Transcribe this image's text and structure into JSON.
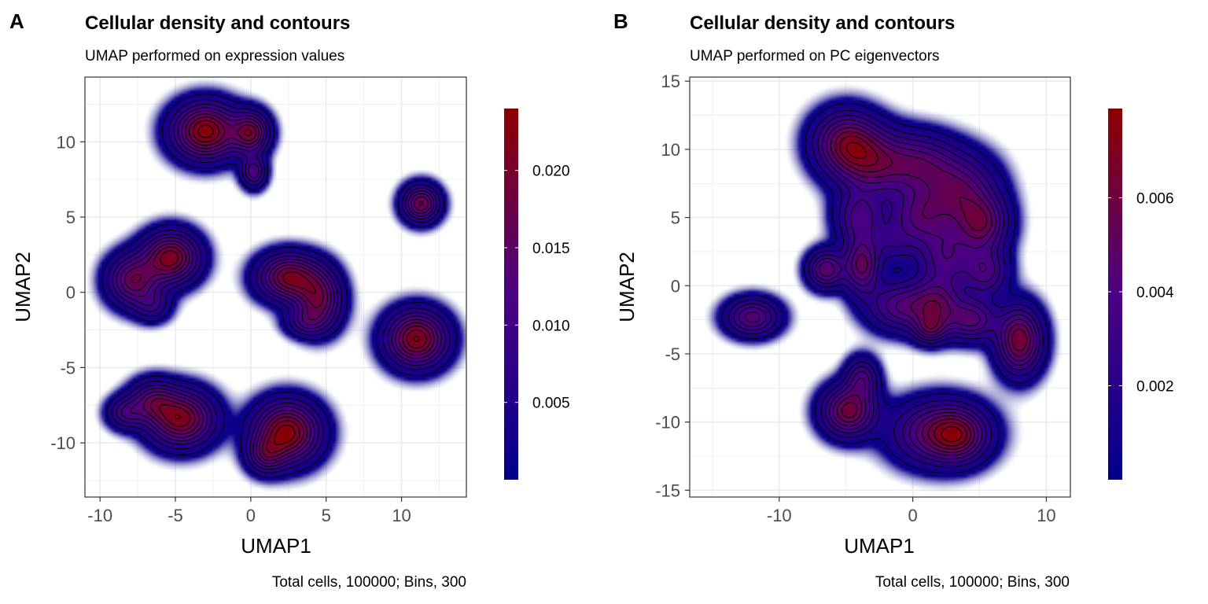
{
  "colors": {
    "low": "#00008B",
    "mid": "#4B0082",
    "high": "#8B0000",
    "contour": "#000000",
    "grid": "#ebebeb"
  },
  "chart_data": [
    {
      "type": "heatmap",
      "panel": "A",
      "title": "Cellular density and contours",
      "subtitle": "UMAP performed on expression values",
      "caption": "Total cells, 100000; Bins, 300",
      "xlabel": "UMAP1",
      "ylabel": "UMAP2",
      "xlim": [
        -11,
        14.3
      ],
      "ylim": [
        -13.6,
        14.3
      ],
      "xticks": [
        -10,
        -5,
        0,
        5,
        10
      ],
      "yticks": [
        -10,
        -5,
        0,
        5,
        10
      ],
      "colorbar": {
        "min": 0,
        "max": 0.024,
        "ticks": [
          0.005,
          0.01,
          0.015,
          0.02
        ],
        "labels": [
          "0.005",
          "0.010",
          "0.015",
          "0.020"
        ]
      },
      "clusters": [
        {
          "x": -3.0,
          "y": 10.7,
          "sx": 1.4,
          "sy": 1.2,
          "w": 1.0
        },
        {
          "x": 0.0,
          "y": 10.6,
          "sx": 0.8,
          "sy": 0.9,
          "w": 0.75
        },
        {
          "x": 0.2,
          "y": 8.0,
          "sx": 0.55,
          "sy": 0.7,
          "w": 0.5
        },
        {
          "x": 11.3,
          "y": 5.9,
          "sx": 0.8,
          "sy": 0.8,
          "w": 0.75
        },
        {
          "x": -5.3,
          "y": 2.3,
          "sx": 1.2,
          "sy": 1.1,
          "w": 0.9
        },
        {
          "x": -7.8,
          "y": 0.8,
          "sx": 1.1,
          "sy": 1.1,
          "w": 0.7
        },
        {
          "x": -6.5,
          "y": -0.9,
          "sx": 0.8,
          "sy": 0.7,
          "w": 0.3
        },
        {
          "x": 2.5,
          "y": 1.0,
          "sx": 1.3,
          "sy": 1.0,
          "w": 0.85
        },
        {
          "x": 4.5,
          "y": -0.5,
          "sx": 1.0,
          "sy": 1.3,
          "w": 0.7
        },
        {
          "x": 3.6,
          "y": -2.0,
          "sx": 0.9,
          "sy": 0.6,
          "w": 0.3
        },
        {
          "x": 11.0,
          "y": -3.1,
          "sx": 1.3,
          "sy": 1.2,
          "w": 0.95
        },
        {
          "x": -4.6,
          "y": -8.4,
          "sx": 1.4,
          "sy": 1.2,
          "w": 0.9
        },
        {
          "x": -6.5,
          "y": -7.2,
          "sx": 1.0,
          "sy": 0.9,
          "w": 0.5
        },
        {
          "x": -8.3,
          "y": -8.0,
          "sx": 0.8,
          "sy": 0.7,
          "w": 0.4
        },
        {
          "x": 2.4,
          "y": -9.3,
          "sx": 1.4,
          "sy": 1.3,
          "w": 1.0
        },
        {
          "x": 1.0,
          "y": -10.8,
          "sx": 0.8,
          "sy": 0.8,
          "w": 0.45
        }
      ]
    },
    {
      "type": "heatmap",
      "panel": "B",
      "title": "Cellular density and contours",
      "subtitle": "UMAP performed on PC eigenvectors",
      "caption": "Total cells, 100000; Bins, 300",
      "xlabel": "UMAP1",
      "ylabel": "UMAP2",
      "xlim": [
        -16.7,
        11.8
      ],
      "ylim": [
        -15.5,
        15.3
      ],
      "xticks": [
        -10,
        0,
        10
      ],
      "yticks": [
        -15,
        -10,
        -5,
        0,
        5,
        10,
        15
      ],
      "colorbar": {
        "min": 0,
        "max": 0.0079,
        "ticks": [
          0.002,
          0.004,
          0.006
        ],
        "labels": [
          "0.002",
          "0.004",
          "0.006"
        ]
      },
      "clusters": [
        {
          "x": -5.0,
          "y": 10.5,
          "sx": 1.6,
          "sy": 1.5,
          "w": 0.85
        },
        {
          "x": -3.0,
          "y": 9.0,
          "sx": 1.8,
          "sy": 1.6,
          "w": 0.7
        },
        {
          "x": 0.5,
          "y": 9.0,
          "sx": 1.8,
          "sy": 1.4,
          "w": 0.6
        },
        {
          "x": 3.5,
          "y": 7.0,
          "sx": 1.8,
          "sy": 1.7,
          "w": 0.7
        },
        {
          "x": 5.2,
          "y": 4.5,
          "sx": 1.3,
          "sy": 1.4,
          "w": 0.75
        },
        {
          "x": 0.5,
          "y": 5.0,
          "sx": 1.6,
          "sy": 1.5,
          "w": 0.6
        },
        {
          "x": -4.0,
          "y": 5.0,
          "sx": 1.2,
          "sy": 1.3,
          "w": 0.55
        },
        {
          "x": -6.5,
          "y": 1.2,
          "sx": 0.9,
          "sy": 0.9,
          "w": 0.75
        },
        {
          "x": -3.8,
          "y": 1.5,
          "sx": 0.9,
          "sy": 1.4,
          "w": 0.8
        },
        {
          "x": 2.5,
          "y": 2.0,
          "sx": 1.4,
          "sy": 1.5,
          "w": 0.55
        },
        {
          "x": 5.5,
          "y": 1.0,
          "sx": 1.1,
          "sy": 1.2,
          "w": 0.55
        },
        {
          "x": -1.0,
          "y": -1.5,
          "sx": 1.6,
          "sy": 1.2,
          "w": 0.6
        },
        {
          "x": 1.8,
          "y": -1.5,
          "sx": 1.3,
          "sy": 1.3,
          "w": 0.7
        },
        {
          "x": 4.5,
          "y": -2.5,
          "sx": 1.2,
          "sy": 1.0,
          "w": 0.65
        },
        {
          "x": -1.5,
          "y": 3.0,
          "sx": 1.0,
          "sy": 1.0,
          "w": 0.25
        },
        {
          "x": 1.3,
          "y": -3.2,
          "sx": 0.8,
          "sy": 0.7,
          "w": 0.5
        },
        {
          "x": 8.0,
          "y": -4.0,
          "sx": 1.1,
          "sy": 1.6,
          "w": 1.0
        },
        {
          "x": -12.0,
          "y": -2.3,
          "sx": 1.3,
          "sy": 0.9,
          "w": 0.7
        },
        {
          "x": -4.8,
          "y": -9.2,
          "sx": 1.3,
          "sy": 1.2,
          "w": 0.95
        },
        {
          "x": -3.8,
          "y": -6.8,
          "sx": 0.8,
          "sy": 1.0,
          "w": 0.55
        },
        {
          "x": 2.0,
          "y": -10.8,
          "sx": 2.2,
          "sy": 1.5,
          "w": 0.85
        },
        {
          "x": 3.5,
          "y": -11.0,
          "sx": 1.3,
          "sy": 1.2,
          "w": 0.5
        }
      ]
    }
  ]
}
